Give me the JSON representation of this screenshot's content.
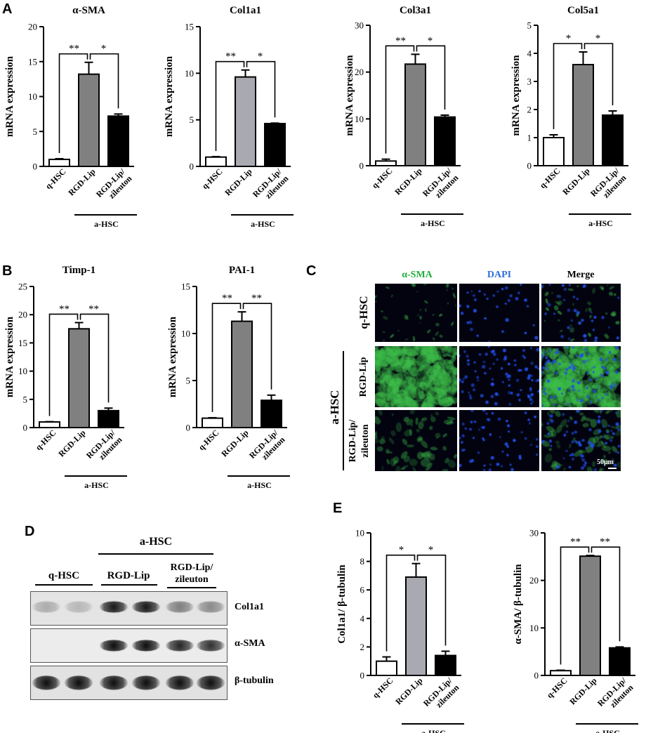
{
  "panel_labels": {
    "A": "A",
    "B": "B",
    "C": "C",
    "D": "D",
    "E": "E"
  },
  "colors": {
    "q_hsc": "#ffffff",
    "rgd_lip": "#808080",
    "rgd_lip_light": "#a9a9b1",
    "zileuton": "#000000",
    "green_stain": "#3dbe4a",
    "blue_stain": "#1f4fe6"
  },
  "chart_data": [
    {
      "type": "bar",
      "panel": "A",
      "title": "α-SMA",
      "ylabel": "mRNA expression",
      "categories": [
        "q-HSC",
        "RGD-Lip",
        "RGD-Lip/ zileuton"
      ],
      "values": [
        1.0,
        13.2,
        7.2
      ],
      "errors": [
        0.1,
        1.7,
        0.3
      ],
      "ylim": [
        0,
        20
      ],
      "yticks": [
        0,
        5,
        10,
        15,
        20
      ],
      "significance": [
        "**",
        "*"
      ],
      "group_label": "a-HSC"
    },
    {
      "type": "bar",
      "panel": "A",
      "title": "Col1a1",
      "ylabel": "mRNA expression",
      "categories": [
        "q-HSC",
        "RGD-Lip",
        "RGD-Lip/ zileuton"
      ],
      "values": [
        1.0,
        9.6,
        4.6
      ],
      "errors": [
        0.05,
        0.75,
        0.05
      ],
      "ylim": [
        0,
        15
      ],
      "yticks": [
        0,
        5,
        10,
        15
      ],
      "significance": [
        "**",
        "*"
      ],
      "group_label": "a-HSC"
    },
    {
      "type": "bar",
      "panel": "A",
      "title": "Col3a1",
      "ylabel": "mRNA expression",
      "categories": [
        "q-HSC",
        "RGD-Lip",
        "RGD-Lip/ zileuton"
      ],
      "values": [
        1.0,
        21.7,
        10.4
      ],
      "errors": [
        0.4,
        2.1,
        0.4
      ],
      "ylim": [
        0,
        30
      ],
      "yticks": [
        0,
        10,
        20,
        30
      ],
      "significance": [
        "**",
        "*"
      ],
      "group_label": "a-HSC"
    },
    {
      "type": "bar",
      "panel": "A",
      "title": "Col5a1",
      "ylabel": "mRNA expression",
      "categories": [
        "q-HSC",
        "RGD-Lip",
        "RGD-Lip/ zileuton"
      ],
      "values": [
        1.0,
        3.6,
        1.8
      ],
      "errors": [
        0.1,
        0.45,
        0.15
      ],
      "ylim": [
        0,
        5
      ],
      "yticks": [
        0,
        1,
        2,
        3,
        4,
        5
      ],
      "significance": [
        "*",
        "*"
      ],
      "group_label": "a-HSC"
    },
    {
      "type": "bar",
      "panel": "B",
      "title": "Timp-1",
      "ylabel": "mRNA expression",
      "categories": [
        "q-HSC",
        "RGD-Lip",
        "RGD-Lip/ zileuton"
      ],
      "values": [
        1.0,
        17.5,
        3.0
      ],
      "errors": [
        0.05,
        1.1,
        0.45
      ],
      "ylim": [
        0,
        25
      ],
      "yticks": [
        0,
        5,
        10,
        15,
        20,
        25
      ],
      "significance": [
        "**",
        "**"
      ],
      "group_label": "a-HSC"
    },
    {
      "type": "bar",
      "panel": "B",
      "title": "PAI-1",
      "ylabel": "mRNA expression",
      "categories": [
        "q-HSC",
        "RGD-Lip",
        "RGD-Lip/ zileuton"
      ],
      "values": [
        1.0,
        11.3,
        2.9
      ],
      "errors": [
        0.05,
        1.0,
        0.55
      ],
      "ylim": [
        0,
        15
      ],
      "yticks": [
        0,
        5,
        10,
        15
      ],
      "significance": [
        "**",
        "**"
      ],
      "group_label": "a-HSC"
    },
    {
      "type": "bar",
      "panel": "E",
      "title": "",
      "ylabel": "Col1a1/ β-tubulin",
      "categories": [
        "q-HSC",
        "RGD-Lip",
        "RGD-Lip/ zileuton"
      ],
      "values": [
        1.0,
        6.9,
        1.4
      ],
      "errors": [
        0.3,
        0.95,
        0.3
      ],
      "ylim": [
        0,
        10
      ],
      "yticks": [
        0,
        2,
        4,
        6,
        8,
        10
      ],
      "significance": [
        "*",
        "*"
      ],
      "group_label": "a-HSC"
    },
    {
      "type": "bar",
      "panel": "E",
      "title": "",
      "ylabel": "α-SMA/ β-tubulin",
      "categories": [
        "q-HSC",
        "RGD-Lip",
        "RGD-Lip/ zileuton"
      ],
      "values": [
        1.0,
        25.1,
        5.8
      ],
      "errors": [
        0.1,
        0.15,
        0.2
      ],
      "ylim": [
        0,
        30
      ],
      "yticks": [
        0,
        10,
        20,
        30
      ],
      "significance": [
        "**",
        "**"
      ],
      "group_label": "a-HSC"
    }
  ],
  "microscopy": {
    "column_headers": [
      "α-SMA",
      "DAPI",
      "Merge"
    ],
    "row_labels": [
      "q-HSC",
      "RGD-Lip",
      "RGD-Lip/ zileuton"
    ],
    "group_label": "a-HSC",
    "scale_bar": "50μm"
  },
  "blot": {
    "group_label": "a-HSC",
    "lane_groups": [
      "q-HSC",
      "RGD-Lip",
      "RGD-Lip/ zileuton"
    ],
    "rows": [
      "Col1a1",
      "α-SMA",
      "β-tubulin"
    ],
    "band_intensity": [
      [
        0.25,
        0.2,
        0.9,
        0.9,
        0.45,
        0.4
      ],
      [
        0.0,
        0.0,
        0.95,
        0.95,
        0.85,
        0.8
      ],
      [
        0.95,
        0.95,
        0.95,
        0.95,
        0.95,
        0.95
      ]
    ]
  }
}
